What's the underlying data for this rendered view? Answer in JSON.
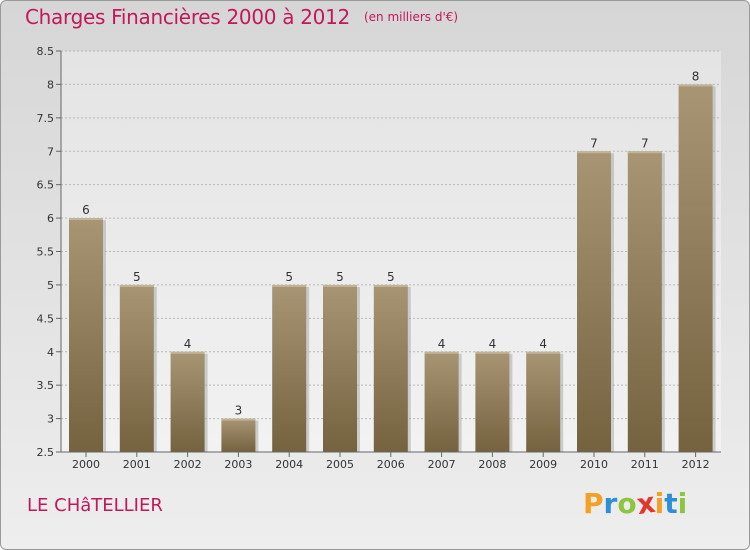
{
  "title": "Charges Financières 2000 à 2012",
  "subtitle": "(en milliers d'€)",
  "commune": "LE CHâTELLIER",
  "logo": {
    "letters": [
      "P",
      "r",
      "o",
      "x",
      "i",
      "t",
      "i"
    ],
    "colors": [
      "#f4a024",
      "#2d8fd5",
      "#8cc63f",
      "#e5342b",
      "#f4a024",
      "#2d8fd5",
      "#8cc63f"
    ]
  },
  "chart_data": {
    "type": "bar",
    "categories": [
      "2000",
      "2001",
      "2002",
      "2003",
      "2004",
      "2005",
      "2006",
      "2007",
      "2008",
      "2009",
      "2010",
      "2011",
      "2012"
    ],
    "values": [
      6,
      5,
      4,
      3,
      5,
      5,
      5,
      4,
      4,
      4,
      7,
      7,
      8
    ],
    "data_labels": [
      "6",
      "5",
      "4",
      "3",
      "5",
      "5",
      "5",
      "4",
      "4",
      "4",
      "7",
      "7",
      "8"
    ],
    "ylim": [
      2.5,
      8.5
    ],
    "yticks": [
      2.5,
      3,
      3.5,
      4,
      4.5,
      5,
      5.5,
      6,
      6.5,
      7,
      7.5,
      8,
      8.5
    ],
    "ytick_labels": [
      "2.5",
      "3",
      "3.5",
      "4",
      "4.5",
      "5",
      "5.5",
      "6",
      "6.5",
      "7",
      "7.5",
      "8",
      "8.5"
    ],
    "grid": true,
    "bar_color_top": "#a79574",
    "bar_color_bottom": "#75623f"
  }
}
